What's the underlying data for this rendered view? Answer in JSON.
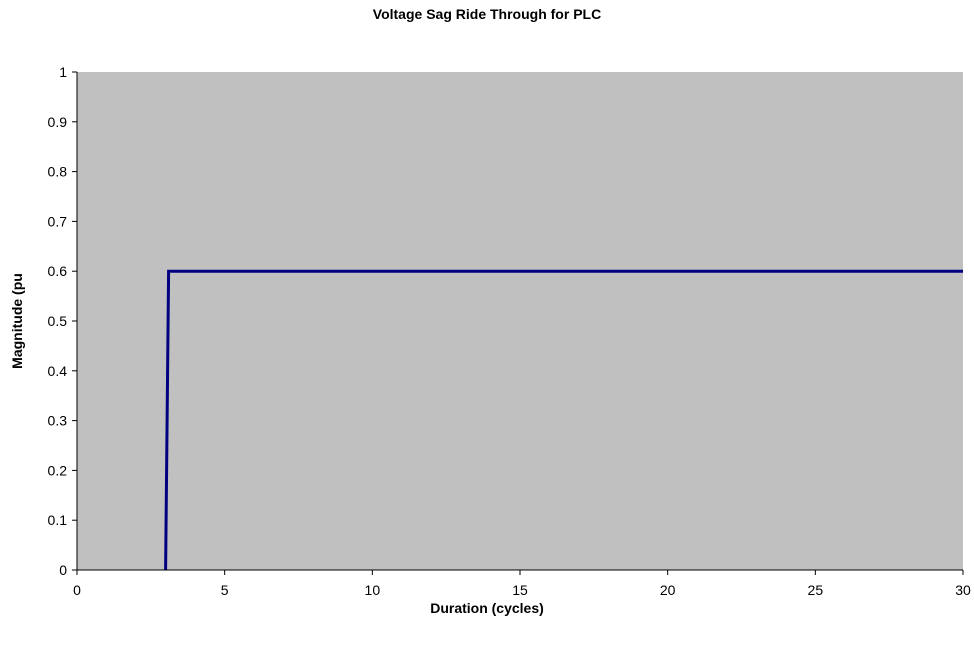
{
  "colors": {
    "plot_background": "#c0c0c0",
    "series_line": "#000080",
    "axis": "#000000"
  },
  "chart_data": {
    "type": "line",
    "title": "Voltage Sag Ride Through for PLC",
    "xlabel": "Duration (cycles)",
    "ylabel": "Magnitude (pu",
    "xlim": [
      0,
      30
    ],
    "ylim": [
      0,
      1
    ],
    "x_ticks": [
      "0",
      "5",
      "10",
      "15",
      "20",
      "25",
      "30"
    ],
    "y_ticks": [
      "0",
      "0.1",
      "0.2",
      "0.3",
      "0.4",
      "0.5",
      "0.6",
      "0.7",
      "0.8",
      "0.9",
      "1"
    ],
    "grid": false,
    "legend": "none",
    "series": [
      {
        "x": [
          3,
          3.1,
          30
        ],
        "y": [
          0,
          0.6,
          0.6
        ]
      }
    ]
  }
}
